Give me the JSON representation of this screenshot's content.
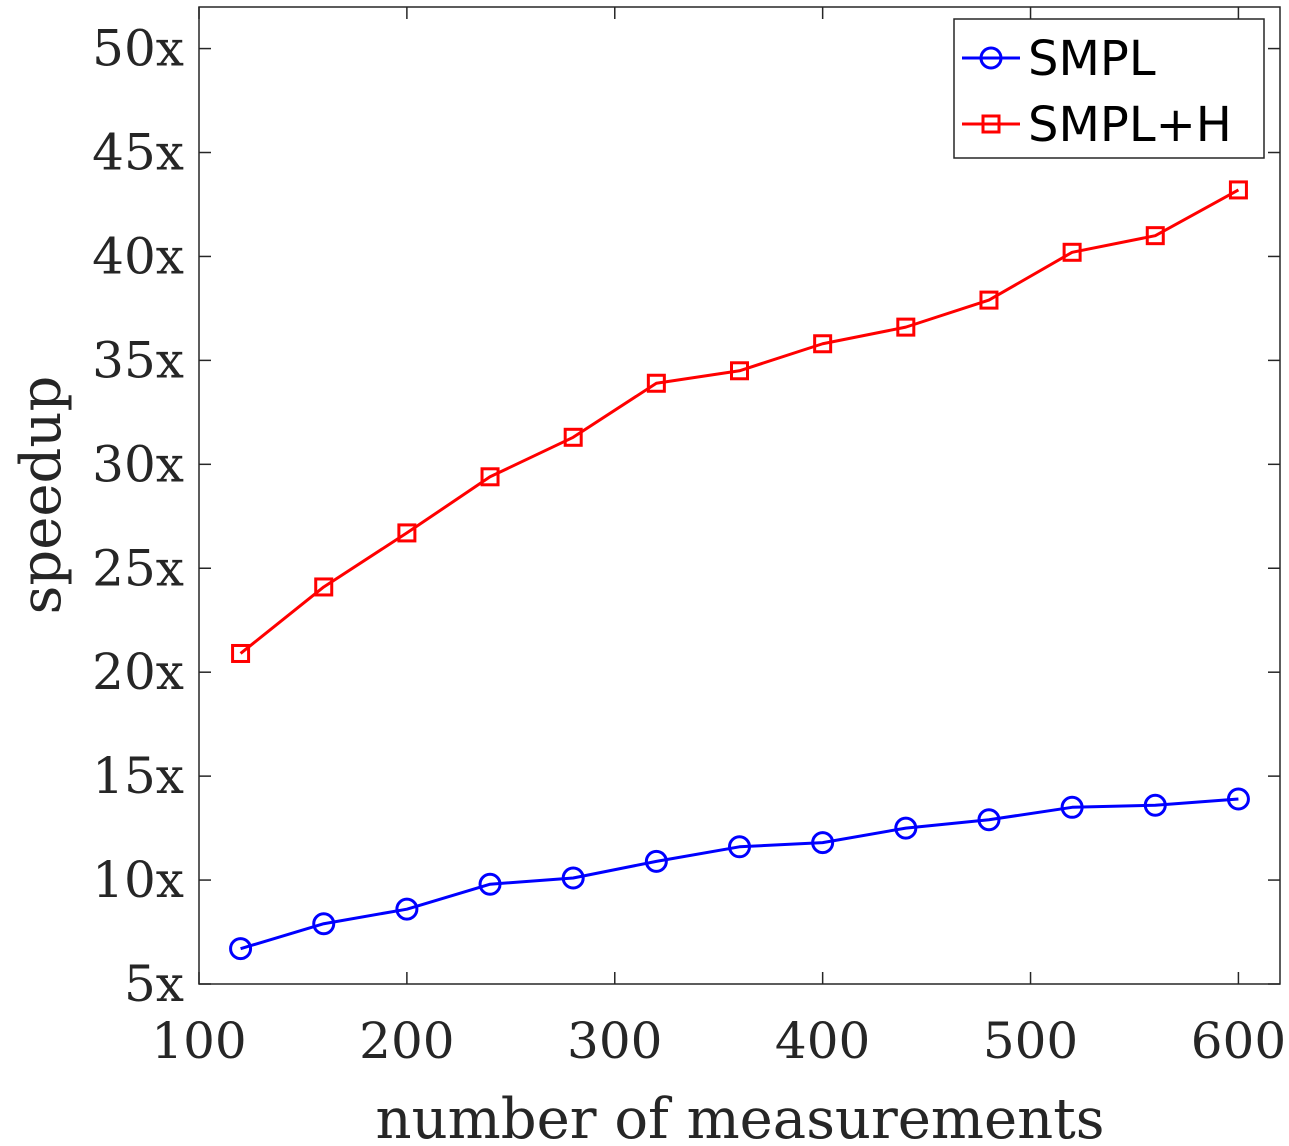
{
  "chart_data": {
    "type": "line",
    "title": "",
    "xlabel": "number of measurements",
    "ylabel": "speedup",
    "xlim": [
      100,
      620
    ],
    "ylim": [
      5,
      52
    ],
    "xticks": [
      100,
      200,
      300,
      400,
      500,
      600
    ],
    "xtick_labels": [
      "100",
      "200",
      "300",
      "400",
      "500",
      "600"
    ],
    "yticks": [
      5,
      10,
      15,
      20,
      25,
      30,
      35,
      40,
      45,
      50
    ],
    "ytick_labels": [
      "5x",
      "10x",
      "15x",
      "20x",
      "25x",
      "30x",
      "35x",
      "40x",
      "45x",
      "50x"
    ],
    "grid": false,
    "legend_position": "top-right",
    "x": [
      120,
      160,
      200,
      240,
      280,
      320,
      360,
      400,
      440,
      480,
      520,
      560,
      600
    ],
    "series": [
      {
        "name": "SMPL",
        "color": "#0000ff",
        "marker": "circle",
        "values": [
          6.7,
          7.9,
          8.6,
          9.8,
          10.1,
          10.9,
          11.6,
          11.8,
          12.5,
          12.9,
          13.5,
          13.6,
          13.9
        ]
      },
      {
        "name": "SMPL+H",
        "color": "#ff0000",
        "marker": "square",
        "values": [
          20.9,
          24.1,
          26.7,
          29.4,
          31.3,
          33.9,
          34.5,
          35.8,
          36.6,
          37.9,
          40.2,
          41.0,
          43.2
        ]
      }
    ]
  }
}
